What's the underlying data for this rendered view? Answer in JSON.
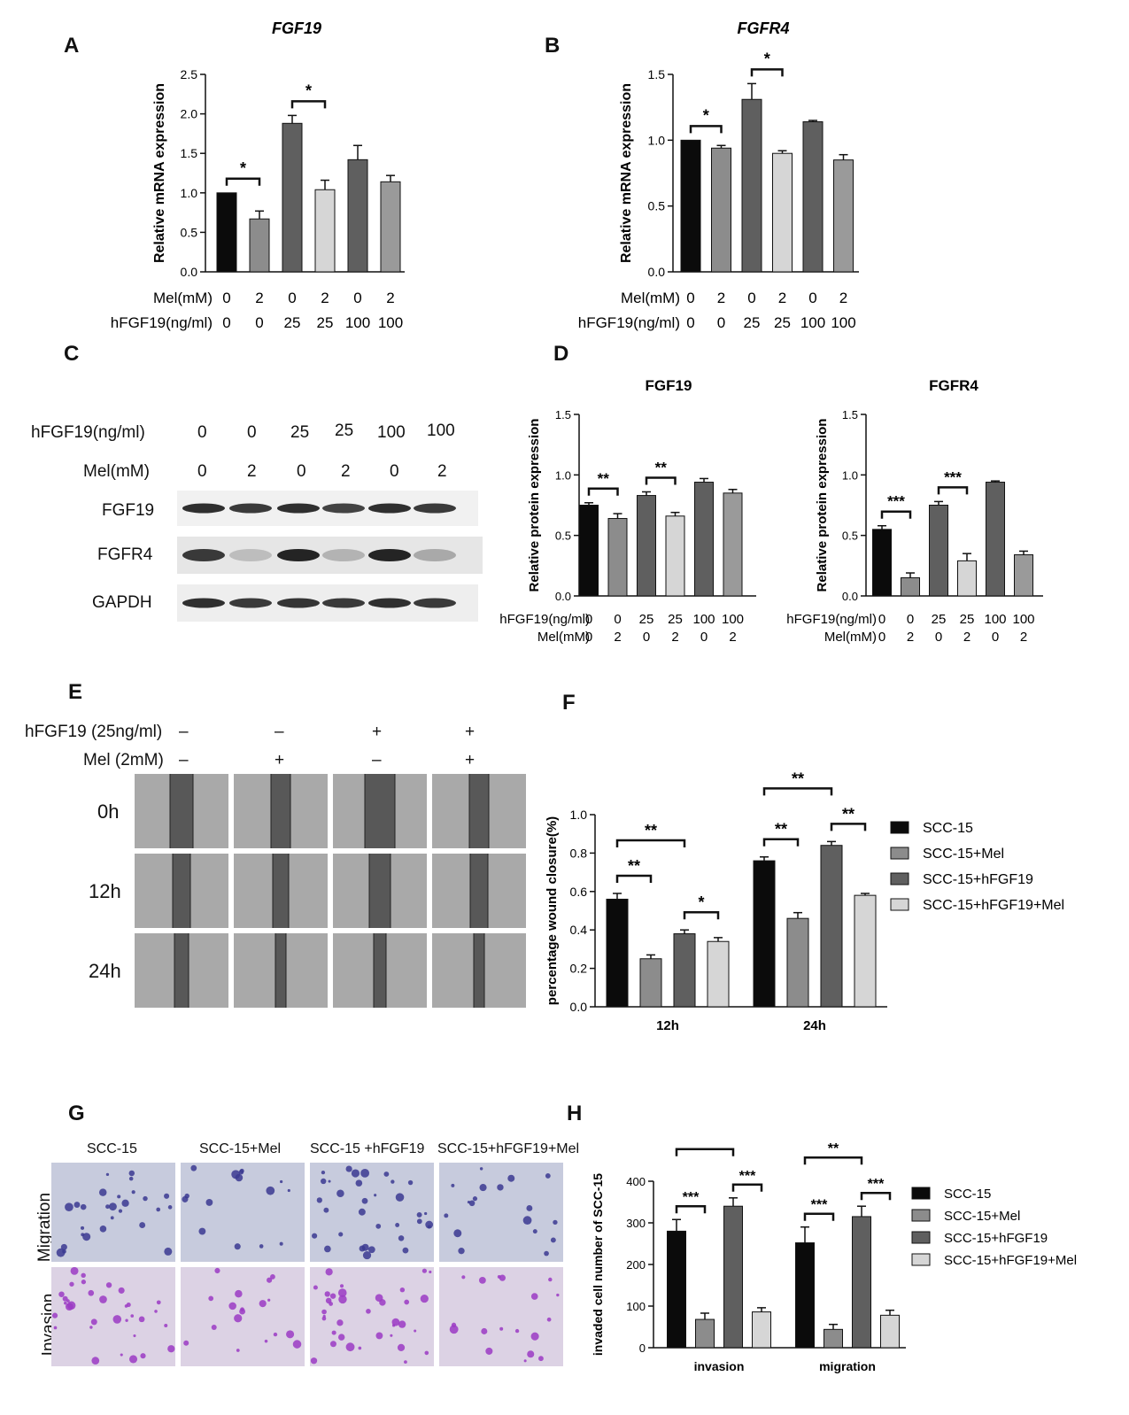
{
  "panels": {
    "A": "A",
    "B": "B",
    "C": "C",
    "D": "D",
    "E": "E",
    "F": "F",
    "G": "G",
    "H": "H"
  },
  "colors": {
    "black": "#0b0b0b",
    "mid": "#8c8c8c",
    "dark": "#5f5f5f",
    "light": "#d6d6d6",
    "midgrey2": "#9a9a9a"
  },
  "chart_data": [
    {
      "id": "A",
      "type": "bar",
      "title": "FGF19",
      "ylabel": "Relative mRNA expression",
      "ylim": [
        0,
        2.5
      ],
      "yticks": [
        "0.0",
        "0.5",
        "1.0",
        "1.5",
        "2.0",
        "2.5"
      ],
      "values": [
        1.0,
        0.67,
        1.88,
        1.04,
        1.42,
        1.14
      ],
      "errors": [
        0.0,
        0.1,
        0.1,
        0.12,
        0.18,
        0.08
      ],
      "colors": [
        "#0b0b0b",
        "#8c8c8c",
        "#5f5f5f",
        "#d6d6d6",
        "#5f5f5f",
        "#9a9a9a"
      ],
      "condition_rows": [
        {
          "label": "Mel(mM)",
          "values": [
            "0",
            "2",
            "0",
            "2",
            "0",
            "2"
          ]
        },
        {
          "label": "hFGF19(ng/ml)",
          "values": [
            "0",
            "0",
            "25",
            "25",
            "100",
            "100"
          ]
        }
      ],
      "significance": [
        {
          "from": 0,
          "to": 1,
          "mark": "*"
        },
        {
          "from": 2,
          "to": 3,
          "mark": "*"
        }
      ]
    },
    {
      "id": "B",
      "type": "bar",
      "title": "FGFR4",
      "ylabel": "Relative mRNA expression",
      "ylim": [
        0,
        1.5
      ],
      "yticks": [
        "0.0",
        "0.5",
        "1.0",
        "1.5"
      ],
      "values": [
        1.0,
        0.94,
        1.31,
        0.9,
        1.14,
        0.85
      ],
      "errors": [
        0.0,
        0.02,
        0.12,
        0.02,
        0.01,
        0.04
      ],
      "colors": [
        "#0b0b0b",
        "#8c8c8c",
        "#5f5f5f",
        "#d6d6d6",
        "#5f5f5f",
        "#9a9a9a"
      ],
      "condition_rows": [
        {
          "label": "Mel(mM)",
          "values": [
            "0",
            "2",
            "0",
            "2",
            "0",
            "2"
          ]
        },
        {
          "label": "hFGF19(ng/ml)",
          "values": [
            "0",
            "0",
            "25",
            "25",
            "100",
            "100"
          ]
        }
      ],
      "significance": [
        {
          "from": 0,
          "to": 1,
          "mark": "*"
        },
        {
          "from": 2,
          "to": 3,
          "mark": "*"
        }
      ]
    },
    {
      "id": "D1",
      "type": "bar",
      "title": "FGF19",
      "ylabel": "Relative protein expression",
      "ylim": [
        0,
        1.5
      ],
      "yticks": [
        "0.0",
        "0.5",
        "1.0",
        "1.5"
      ],
      "values": [
        0.75,
        0.64,
        0.83,
        0.66,
        0.94,
        0.85
      ],
      "errors": [
        0.02,
        0.04,
        0.03,
        0.03,
        0.03,
        0.03
      ],
      "colors": [
        "#0b0b0b",
        "#8c8c8c",
        "#5f5f5f",
        "#d6d6d6",
        "#5f5f5f",
        "#9a9a9a"
      ],
      "condition_rows": [
        {
          "label": "hFGF19(ng/ml)",
          "values": [
            "0",
            "0",
            "25",
            "25",
            "100",
            "100"
          ]
        },
        {
          "label": "Mel(mM)",
          "values": [
            "0",
            "2",
            "0",
            "2",
            "0",
            "2"
          ]
        }
      ],
      "significance": [
        {
          "from": 0,
          "to": 1,
          "mark": "**"
        },
        {
          "from": 2,
          "to": 3,
          "mark": "**"
        }
      ]
    },
    {
      "id": "D2",
      "type": "bar",
      "title": "FGFR4",
      "ylabel": "Relative protein expression",
      "ylim": [
        0,
        1.5
      ],
      "yticks": [
        "0.0",
        "0.5",
        "1.0",
        "1.5"
      ],
      "values": [
        0.55,
        0.15,
        0.75,
        0.29,
        0.94,
        0.34
      ],
      "errors": [
        0.03,
        0.04,
        0.03,
        0.06,
        0.01,
        0.03
      ],
      "colors": [
        "#0b0b0b",
        "#8c8c8c",
        "#5f5f5f",
        "#d6d6d6",
        "#5f5f5f",
        "#9a9a9a"
      ],
      "condition_rows": [
        {
          "label": "hFGF19(ng/ml)",
          "values": [
            "0",
            "0",
            "25",
            "25",
            "100",
            "100"
          ]
        },
        {
          "label": "Mel(mM)",
          "values": [
            "0",
            "2",
            "0",
            "2",
            "0",
            "2"
          ]
        }
      ],
      "significance": [
        {
          "from": 0,
          "to": 1,
          "mark": "***"
        },
        {
          "from": 2,
          "to": 3,
          "mark": "***"
        }
      ]
    },
    {
      "id": "F",
      "type": "bar",
      "title": "",
      "ylabel": "percentage wound closure(%)",
      "ylim": [
        0,
        1.0
      ],
      "yticks": [
        "0.0",
        "0.2",
        "0.4",
        "0.6",
        "0.8",
        "1.0"
      ],
      "categories": [
        "12h",
        "24h"
      ],
      "series": [
        {
          "name": "SCC-15",
          "values": [
            0.56,
            0.76
          ],
          "errors": [
            0.03,
            0.02
          ],
          "color": "#0b0b0b"
        },
        {
          "name": "SCC-15+Mel",
          "values": [
            0.25,
            0.46
          ],
          "errors": [
            0.02,
            0.03
          ],
          "color": "#8c8c8c"
        },
        {
          "name": "SCC-15+hFGF19",
          "values": [
            0.38,
            0.84
          ],
          "errors": [
            0.02,
            0.02
          ],
          "color": "#5f5f5f"
        },
        {
          "name": "SCC-15+hFGF19+Mel",
          "values": [
            0.34,
            0.58
          ],
          "errors": [
            0.02,
            0.01
          ],
          "color": "#d6d6d6"
        }
      ],
      "significance": [
        {
          "cat": 0,
          "from": 0,
          "to": 1,
          "mark": "**",
          "level": 0
        },
        {
          "cat": 0,
          "from": 0,
          "to": 2,
          "mark": "**",
          "level": 1
        },
        {
          "cat": 0,
          "from": 2,
          "to": 3,
          "mark": "*",
          "level": 0
        },
        {
          "cat": 1,
          "from": 0,
          "to": 1,
          "mark": "**",
          "level": 0
        },
        {
          "cat": 1,
          "from": 0,
          "to": 2,
          "mark": "**",
          "level": 1
        },
        {
          "cat": 1,
          "from": 2,
          "to": 3,
          "mark": "**",
          "level": 0
        }
      ]
    },
    {
      "id": "H",
      "type": "bar",
      "title": "",
      "ylabel": "invaded cell number of SCC-15",
      "ylim": [
        0,
        400
      ],
      "yticks": [
        "0",
        "100",
        "200",
        "300",
        "400"
      ],
      "categories": [
        "invasion",
        "migration"
      ],
      "series": [
        {
          "name": "SCC-15",
          "values": [
            280,
            252
          ],
          "errors": [
            28,
            38
          ],
          "color": "#0b0b0b"
        },
        {
          "name": "SCC-15+Mel",
          "values": [
            68,
            44
          ],
          "errors": [
            15,
            12
          ],
          "color": "#8c8c8c"
        },
        {
          "name": "SCC-15+hFGF19",
          "values": [
            340,
            315
          ],
          "errors": [
            20,
            25
          ],
          "color": "#5f5f5f"
        },
        {
          "name": "SCC-15+hFGF19+Mel",
          "values": [
            86,
            78
          ],
          "errors": [
            10,
            12
          ],
          "color": "#d6d6d6"
        }
      ],
      "significance": [
        {
          "cat": 0,
          "from": 0,
          "to": 1,
          "mark": "***",
          "level": 0
        },
        {
          "cat": 0,
          "from": 0,
          "to": 2,
          "mark": "**",
          "level": 1
        },
        {
          "cat": 0,
          "from": 2,
          "to": 3,
          "mark": "***",
          "level": 0
        },
        {
          "cat": 1,
          "from": 0,
          "to": 1,
          "mark": "***",
          "level": 0
        },
        {
          "cat": 1,
          "from": 0,
          "to": 2,
          "mark": "**",
          "level": 1
        },
        {
          "cat": 1,
          "from": 2,
          "to": 3,
          "mark": "***",
          "level": 0
        }
      ]
    }
  ],
  "blot": {
    "header_rows": [
      {
        "label": "hFGF19(ng/ml)",
        "values": [
          "0",
          "0",
          "25",
          "25",
          "100",
          "100"
        ]
      },
      {
        "label": "Mel(mM)",
        "values": [
          "0",
          "2",
          "0",
          "2",
          "0",
          "2"
        ]
      }
    ],
    "bands": [
      {
        "label": "FGF19",
        "intensity": [
          0.95,
          0.9,
          0.95,
          0.85,
          0.95,
          0.9
        ]
      },
      {
        "label": "FGFR4",
        "intensity": [
          0.9,
          0.25,
          1.0,
          0.3,
          1.0,
          0.35
        ]
      },
      {
        "label": "GAPDH",
        "intensity": [
          0.95,
          0.9,
          0.92,
          0.9,
          0.95,
          0.9
        ]
      }
    ]
  },
  "wound": {
    "header_rows": [
      {
        "label": "hFGF19 (25ng/ml)",
        "values": [
          "–",
          "–",
          "+",
          "+"
        ]
      },
      {
        "label": "Mel (2mM)",
        "values": [
          "–",
          "+",
          "–",
          "+"
        ]
      }
    ],
    "times": [
      "0h",
      "12h",
      "24h"
    ]
  },
  "transwell": {
    "columns": [
      "SCC-15",
      "SCC-15+Mel",
      "SCC-15 +hFGF19",
      "SCC-15+hFGF19+Mel"
    ],
    "rows": [
      "Migration",
      "Invasion"
    ]
  }
}
